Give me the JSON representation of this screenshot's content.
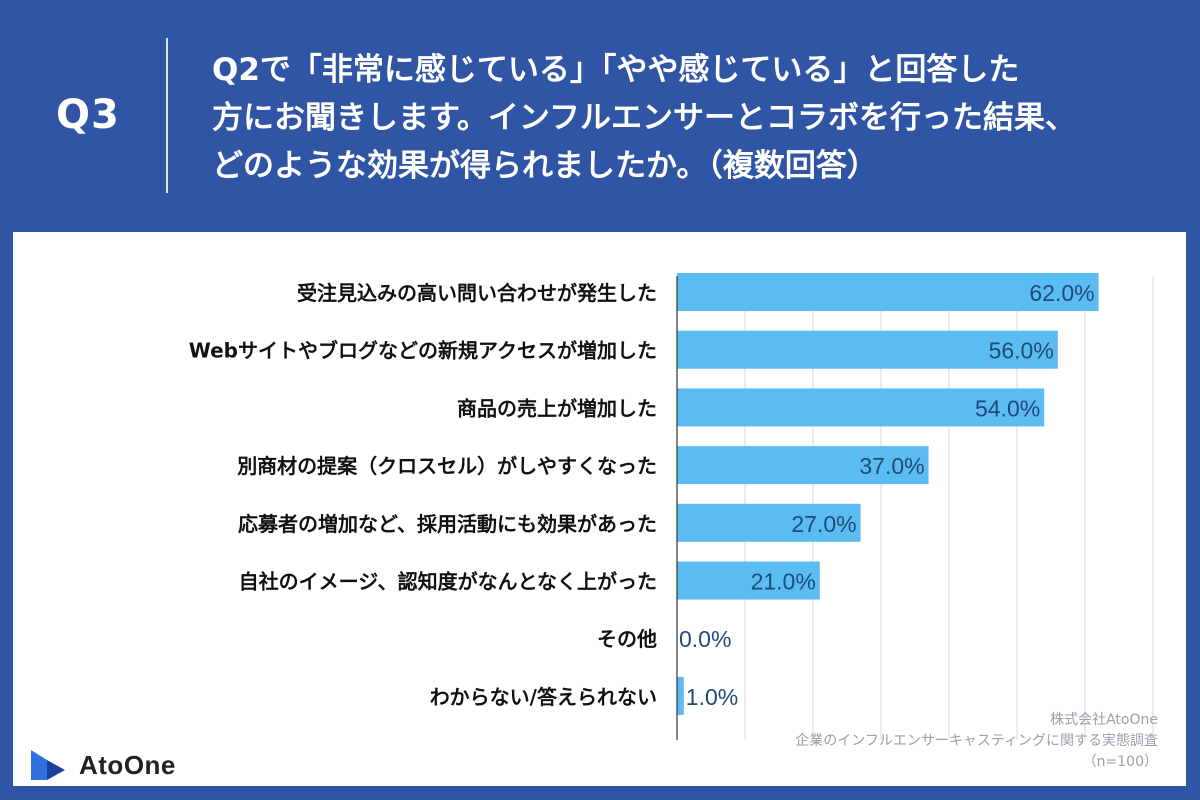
{
  "header": {
    "q_label": "Q3",
    "question_lines": [
      "Q2で「非常に感じている」「やや感じている」と回答した",
      "方にお聞きします。インフルエンサーとコラボを行った結果、",
      "どのような効果が得られましたか。（複数回答）"
    ]
  },
  "chart_data": {
    "type": "bar",
    "orientation": "horizontal",
    "categories": [
      "受注見込みの高い問い合わせが発生した",
      "Webサイトやブログなどの新規アクセスが増加した",
      "商品の売上が増加した",
      "別商材の提案（クロスセル）がしやすくなった",
      "応募者の増加など、採用活動にも効果があった",
      "自社のイメージ、認知度がなんとなく上がった",
      "その他",
      "わからない/答えられない"
    ],
    "values": [
      62.0,
      56.0,
      54.0,
      37.0,
      27.0,
      21.0,
      0.0,
      1.0
    ],
    "data_labels": [
      "62.0%",
      "56.0%",
      "54.0%",
      "37.0%",
      "27.0%",
      "21.0%",
      "0.0%",
      "1.0%"
    ],
    "xlim": [
      0,
      70
    ],
    "grid": true,
    "bar_color": "#5bbcf2",
    "label_color": "#1f4a7a"
  },
  "logo": {
    "text": "AtoOne",
    "color": "#2f6fe0"
  },
  "source": {
    "lines": [
      "株式会社AtoOne",
      "企業のインフルエンサーキャスティングに関する実態調査",
      "（n=100）"
    ]
  }
}
